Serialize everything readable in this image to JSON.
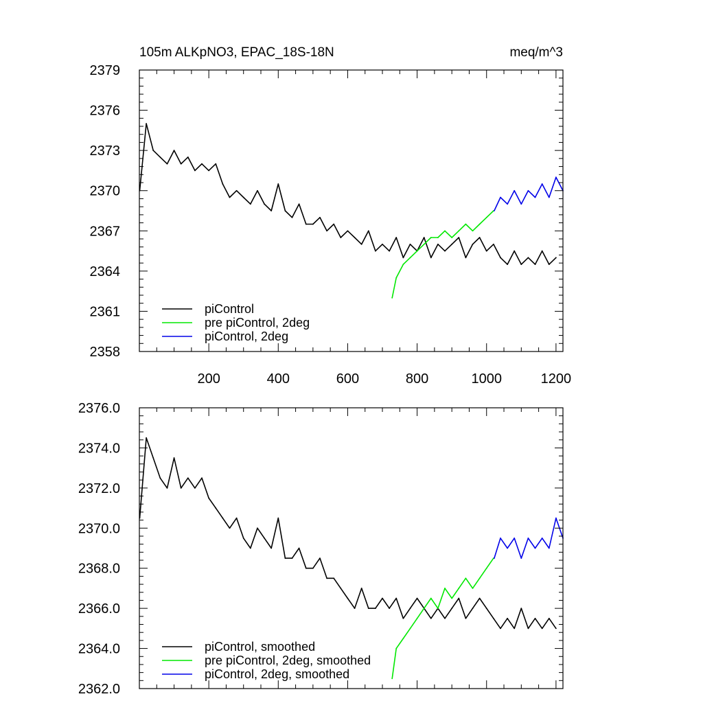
{
  "chart_data": [
    {
      "type": "line",
      "title": "105m ALKpNO3, EPAC_18S-18N",
      "units": "meq/m^3",
      "xlabel": "",
      "ylabel": "",
      "xlim": [
        0,
        1220
      ],
      "ylim": [
        2358,
        2379
      ],
      "xticks": [
        200,
        400,
        600,
        800,
        1000,
        1200
      ],
      "xtick_labels": [
        "200",
        "400",
        "600",
        "800",
        "1000",
        "1200"
      ],
      "yticks": [
        2358,
        2361,
        2364,
        2367,
        2370,
        2373,
        2376,
        2379
      ],
      "ytick_labels": [
        "2358",
        "2361",
        "2364",
        "2367",
        "2370",
        "2373",
        "2376",
        "2379"
      ],
      "legend_position": "bottom-left",
      "series": [
        {
          "name": "piControl",
          "color": "#000000",
          "x": [
            1,
            20,
            40,
            60,
            80,
            100,
            120,
            140,
            160,
            180,
            200,
            220,
            240,
            260,
            280,
            300,
            320,
            340,
            360,
            380,
            400,
            420,
            440,
            460,
            480,
            500,
            520,
            540,
            560,
            580,
            600,
            620,
            640,
            660,
            680,
            700,
            720,
            740,
            760,
            780,
            800,
            820,
            840,
            860,
            880,
            900,
            920,
            940,
            960,
            980,
            1000,
            1020,
            1040,
            1060,
            1080,
            1100,
            1120,
            1140,
            1160,
            1180,
            1200
          ],
          "values": [
            2370.0,
            2375.0,
            2373.0,
            2372.5,
            2372.0,
            2373.0,
            2372.0,
            2372.5,
            2371.5,
            2372.0,
            2371.5,
            2372.0,
            2370.5,
            2369.5,
            2370.0,
            2369.5,
            2369.0,
            2370.0,
            2369.0,
            2368.5,
            2370.5,
            2368.5,
            2368.0,
            2369.0,
            2367.5,
            2367.5,
            2368.0,
            2367.0,
            2367.5,
            2366.5,
            2367.0,
            2366.5,
            2366.0,
            2367.0,
            2365.5,
            2366.0,
            2365.5,
            2366.5,
            2365.0,
            2366.0,
            2365.5,
            2366.5,
            2365.0,
            2366.0,
            2365.5,
            2366.0,
            2366.5,
            2365.0,
            2366.0,
            2366.5,
            2365.5,
            2366.0,
            2365.0,
            2364.5,
            2365.5,
            2364.5,
            2365.0,
            2364.5,
            2365.5,
            2364.5,
            2365.0
          ]
        },
        {
          "name": "pre piControl, 2deg",
          "color": "#00e800",
          "x": [
            728,
            740,
            760,
            780,
            800,
            820,
            840,
            860,
            880,
            900,
            920,
            940,
            960,
            980,
            1000,
            1020
          ],
          "values": [
            2362.0,
            2363.5,
            2364.5,
            2365.0,
            2365.5,
            2366.0,
            2366.5,
            2366.5,
            2367.0,
            2366.5,
            2367.0,
            2367.5,
            2367.0,
            2367.5,
            2368.0,
            2368.5
          ]
        },
        {
          "name": "piControl, 2deg",
          "color": "#0000e8",
          "x": [
            1022,
            1040,
            1060,
            1080,
            1100,
            1120,
            1140,
            1160,
            1180,
            1200,
            1220
          ],
          "values": [
            2368.5,
            2369.5,
            2369.0,
            2370.0,
            2369.0,
            2370.0,
            2369.5,
            2370.5,
            2369.5,
            2371.0,
            2370.0
          ]
        }
      ]
    },
    {
      "type": "line",
      "title": "",
      "xlabel": "",
      "ylabel": "",
      "xlim": [
        0,
        1220
      ],
      "ylim": [
        2362.0,
        2376.0
      ],
      "xticks": [
        200,
        400,
        600,
        800,
        1000,
        1200
      ],
      "yticks": [
        2362.0,
        2364.0,
        2366.0,
        2368.0,
        2370.0,
        2372.0,
        2374.0,
        2376.0
      ],
      "ytick_labels": [
        "2362.0",
        "2364.0",
        "2366.0",
        "2368.0",
        "2370.0",
        "2372.0",
        "2374.0",
        "2376.0"
      ],
      "legend_position": "bottom-left",
      "series": [
        {
          "name": "piControl, smoothed",
          "color": "#000000",
          "x": [
            1,
            20,
            40,
            60,
            80,
            100,
            120,
            140,
            160,
            180,
            200,
            220,
            240,
            260,
            280,
            300,
            320,
            340,
            360,
            380,
            400,
            420,
            440,
            460,
            480,
            500,
            520,
            540,
            560,
            580,
            600,
            620,
            640,
            660,
            680,
            700,
            720,
            740,
            760,
            780,
            800,
            820,
            840,
            860,
            880,
            900,
            920,
            940,
            960,
            980,
            1000,
            1020,
            1040,
            1060,
            1080,
            1100,
            1120,
            1140,
            1160,
            1180,
            1200
          ],
          "values": [
            2370.5,
            2374.5,
            2373.5,
            2372.5,
            2372.0,
            2373.5,
            2372.0,
            2372.5,
            2372.0,
            2372.5,
            2371.5,
            2371.0,
            2370.5,
            2370.0,
            2370.5,
            2369.5,
            2369.0,
            2370.0,
            2369.5,
            2369.0,
            2370.5,
            2368.5,
            2368.5,
            2369.0,
            2368.0,
            2368.0,
            2368.5,
            2367.5,
            2367.5,
            2367.0,
            2366.5,
            2366.0,
            2367.0,
            2366.0,
            2366.0,
            2366.5,
            2366.0,
            2366.5,
            2365.5,
            2366.0,
            2366.5,
            2366.0,
            2365.5,
            2366.0,
            2365.5,
            2366.0,
            2366.5,
            2365.5,
            2366.0,
            2366.5,
            2366.0,
            2365.5,
            2365.0,
            2365.5,
            2365.0,
            2366.0,
            2365.0,
            2365.5,
            2365.0,
            2365.5,
            2365.0
          ]
        },
        {
          "name": "pre piControl, 2deg, smoothed",
          "color": "#00e800",
          "x": [
            728,
            740,
            760,
            780,
            800,
            820,
            840,
            860,
            880,
            900,
            920,
            940,
            960,
            980,
            1000,
            1020
          ],
          "values": [
            2362.5,
            2364.0,
            2364.5,
            2365.0,
            2365.5,
            2366.0,
            2366.5,
            2366.0,
            2367.0,
            2366.5,
            2367.0,
            2367.5,
            2367.0,
            2367.5,
            2368.0,
            2368.5
          ]
        },
        {
          "name": "piControl, 2deg, smoothed",
          "color": "#0000e8",
          "x": [
            1022,
            1040,
            1060,
            1080,
            1100,
            1120,
            1140,
            1160,
            1180,
            1200,
            1220
          ],
          "values": [
            2368.5,
            2369.5,
            2369.0,
            2369.5,
            2368.5,
            2369.5,
            2369.0,
            2369.5,
            2369.0,
            2370.5,
            2369.5
          ]
        }
      ]
    }
  ]
}
